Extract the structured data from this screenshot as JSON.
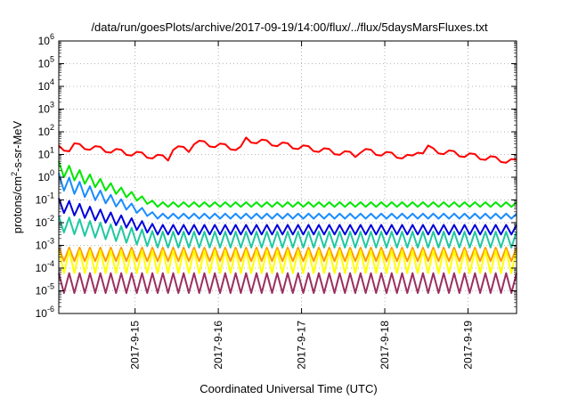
{
  "chart_data": {
    "type": "line",
    "title": "/data/run/goesPlots/archive/2017-09-19/14:00/flux/../flux/5daysMarsFluxes.txt",
    "xlabel": "Coordinated Universal Time (UTC)",
    "ylabel_base": "protons/cm",
    "ylabel_sup": "2",
    "ylabel_tail": "-s-sr-MeV",
    "yscale": "log",
    "ylim": [
      1e-06,
      1000000.0
    ],
    "yticks": [
      {
        "exp": -6,
        "base": "10",
        "sup": "-6"
      },
      {
        "exp": -5,
        "base": "10",
        "sup": "-5"
      },
      {
        "exp": -4,
        "base": "10",
        "sup": "-4"
      },
      {
        "exp": -3,
        "base": "10",
        "sup": "-3"
      },
      {
        "exp": -2,
        "base": "10",
        "sup": "-2"
      },
      {
        "exp": -1,
        "base": "10",
        "sup": "-1"
      },
      {
        "exp": 0,
        "base": "10",
        "sup": "0"
      },
      {
        "exp": 1,
        "base": "10",
        "sup": "1"
      },
      {
        "exp": 2,
        "base": "10",
        "sup": "2"
      },
      {
        "exp": 3,
        "base": "10",
        "sup": "3"
      },
      {
        "exp": 4,
        "base": "10",
        "sup": "4"
      },
      {
        "exp": 5,
        "base": "10",
        "sup": "5"
      },
      {
        "exp": 6,
        "base": "10",
        "sup": "6"
      }
    ],
    "xlim": [
      "2017-09-14 02:00",
      "2017-09-19 14:00"
    ],
    "xticks": [
      {
        "label": "2017-9-15",
        "value": "2017-09-15 00:00"
      },
      {
        "label": "2017-9-16",
        "value": "2017-09-16 00:00"
      },
      {
        "label": "2017-9-17",
        "value": "2017-09-17 00:00"
      },
      {
        "label": "2017-9-18",
        "value": "2017-09-18 00:00"
      },
      {
        "label": "2017-9-19",
        "value": "2017-09-19 00:00"
      }
    ],
    "grid": true,
    "series": [
      {
        "color": "#ff0000",
        "kind": "sawtooth-events",
        "base": 20,
        "settle": 3,
        "events": [
          [
            "2017-09-14 06:00",
            25
          ],
          [
            "2017-09-15 11:00",
            20
          ],
          [
            "2017-09-15 16:00",
            35
          ],
          [
            "2017-09-16 08:00",
            45
          ],
          [
            "2017-09-16 20:00",
            25
          ],
          [
            "2017-09-17 17:00",
            15
          ],
          [
            "2017-09-18 09:00",
            15
          ],
          [
            "2017-09-18 12:00",
            20
          ],
          [
            "2017-09-18 13:00",
            15
          ]
        ]
      },
      {
        "color": "#00e600",
        "hi_start": 5,
        "lo_start": 1.2,
        "hi_end": 0.08,
        "lo_end": 0.05,
        "decay_end": "2017-09-15 06:00"
      },
      {
        "color": "#1a8cff",
        "hi_start": 1.5,
        "lo_start": 0.3,
        "hi_end": 0.025,
        "lo_end": 0.015,
        "decay_end": "2017-09-15 06:00"
      },
      {
        "color": "#0000dd",
        "hi_start": 0.12,
        "lo_start": 0.03,
        "hi_end": 0.008,
        "lo_end": 0.003,
        "decay_end": "2017-09-15 06:00"
      },
      {
        "color": "#20c8a0",
        "hi_start": 0.02,
        "lo_start": 0.004,
        "hi_end": 0.004,
        "lo_end": 0.0008,
        "decay_end": "2017-09-15 06:00"
      },
      {
        "color": "#ff9900",
        "hi_start": 0.0008,
        "lo_start": 0.0002,
        "hi_end": 0.0008,
        "lo_end": 0.0002,
        "decay_end": "2017-09-15 06:00"
      },
      {
        "color": "#ffff00",
        "hi_start": 0.0006,
        "lo_start": 6e-05,
        "hi_end": 0.0006,
        "lo_end": 6e-05,
        "decay_end": "2017-09-15 06:00"
      },
      {
        "color": "#9b3060",
        "hi_start": 6e-05,
        "lo_start": 8e-06,
        "hi_end": 6e-05,
        "lo_end": 8e-06,
        "decay_end": "2017-09-15 06:00"
      }
    ],
    "oscillation_period_hours": 3
  }
}
